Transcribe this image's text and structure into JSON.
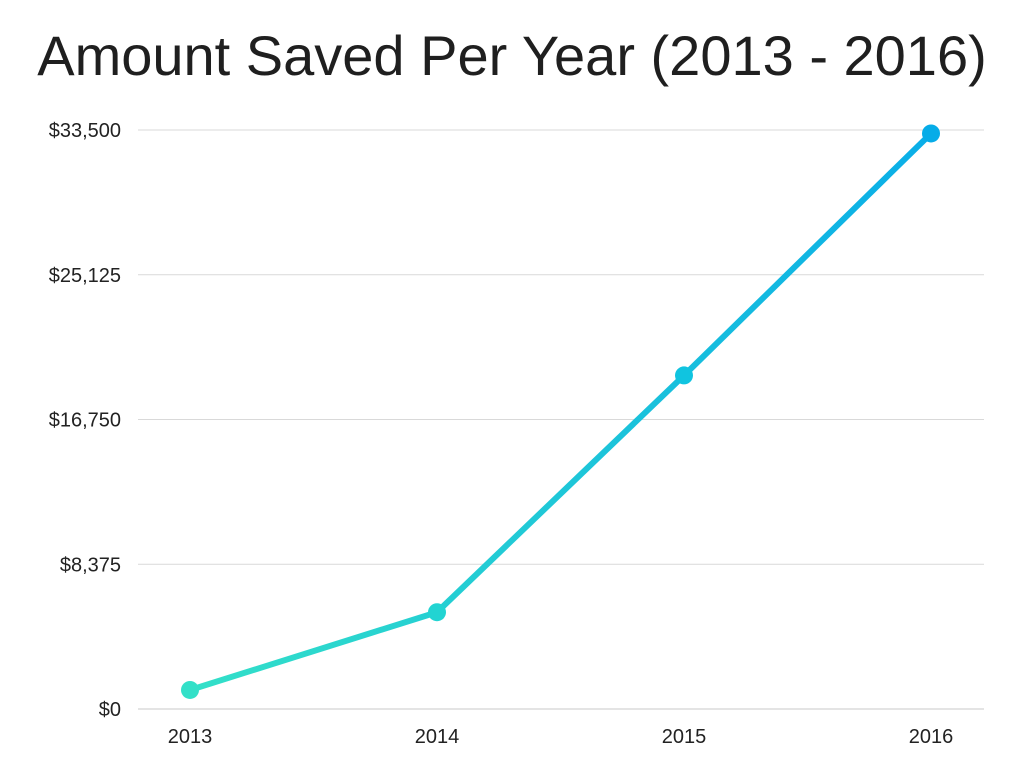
{
  "chart_data": {
    "type": "line",
    "title": "Amount Saved Per Year (2013 - 2016)",
    "xlabel": "",
    "ylabel": "",
    "categories": [
      "2013",
      "2014",
      "2015",
      "2016"
    ],
    "series": [
      {
        "values": [
          1100,
          5600,
          19300,
          33300
        ]
      }
    ],
    "y_ticks": [
      0,
      8375,
      16750,
      25125,
      33500
    ],
    "y_tick_labels": [
      "$0",
      "$8,375",
      "$16,750",
      "$25,125",
      "$33,500"
    ],
    "ylim": [
      0,
      33500
    ],
    "grid": true,
    "legend": "none",
    "colors": {
      "line_start": "#33e0c8",
      "line_end": "#0aaee8",
      "grid": "#d9d9d9",
      "axis": "#c8c8c8",
      "point_colors": [
        "#33e0c8",
        "#22d4d2",
        "#10c4e0",
        "#06ace8"
      ]
    }
  }
}
